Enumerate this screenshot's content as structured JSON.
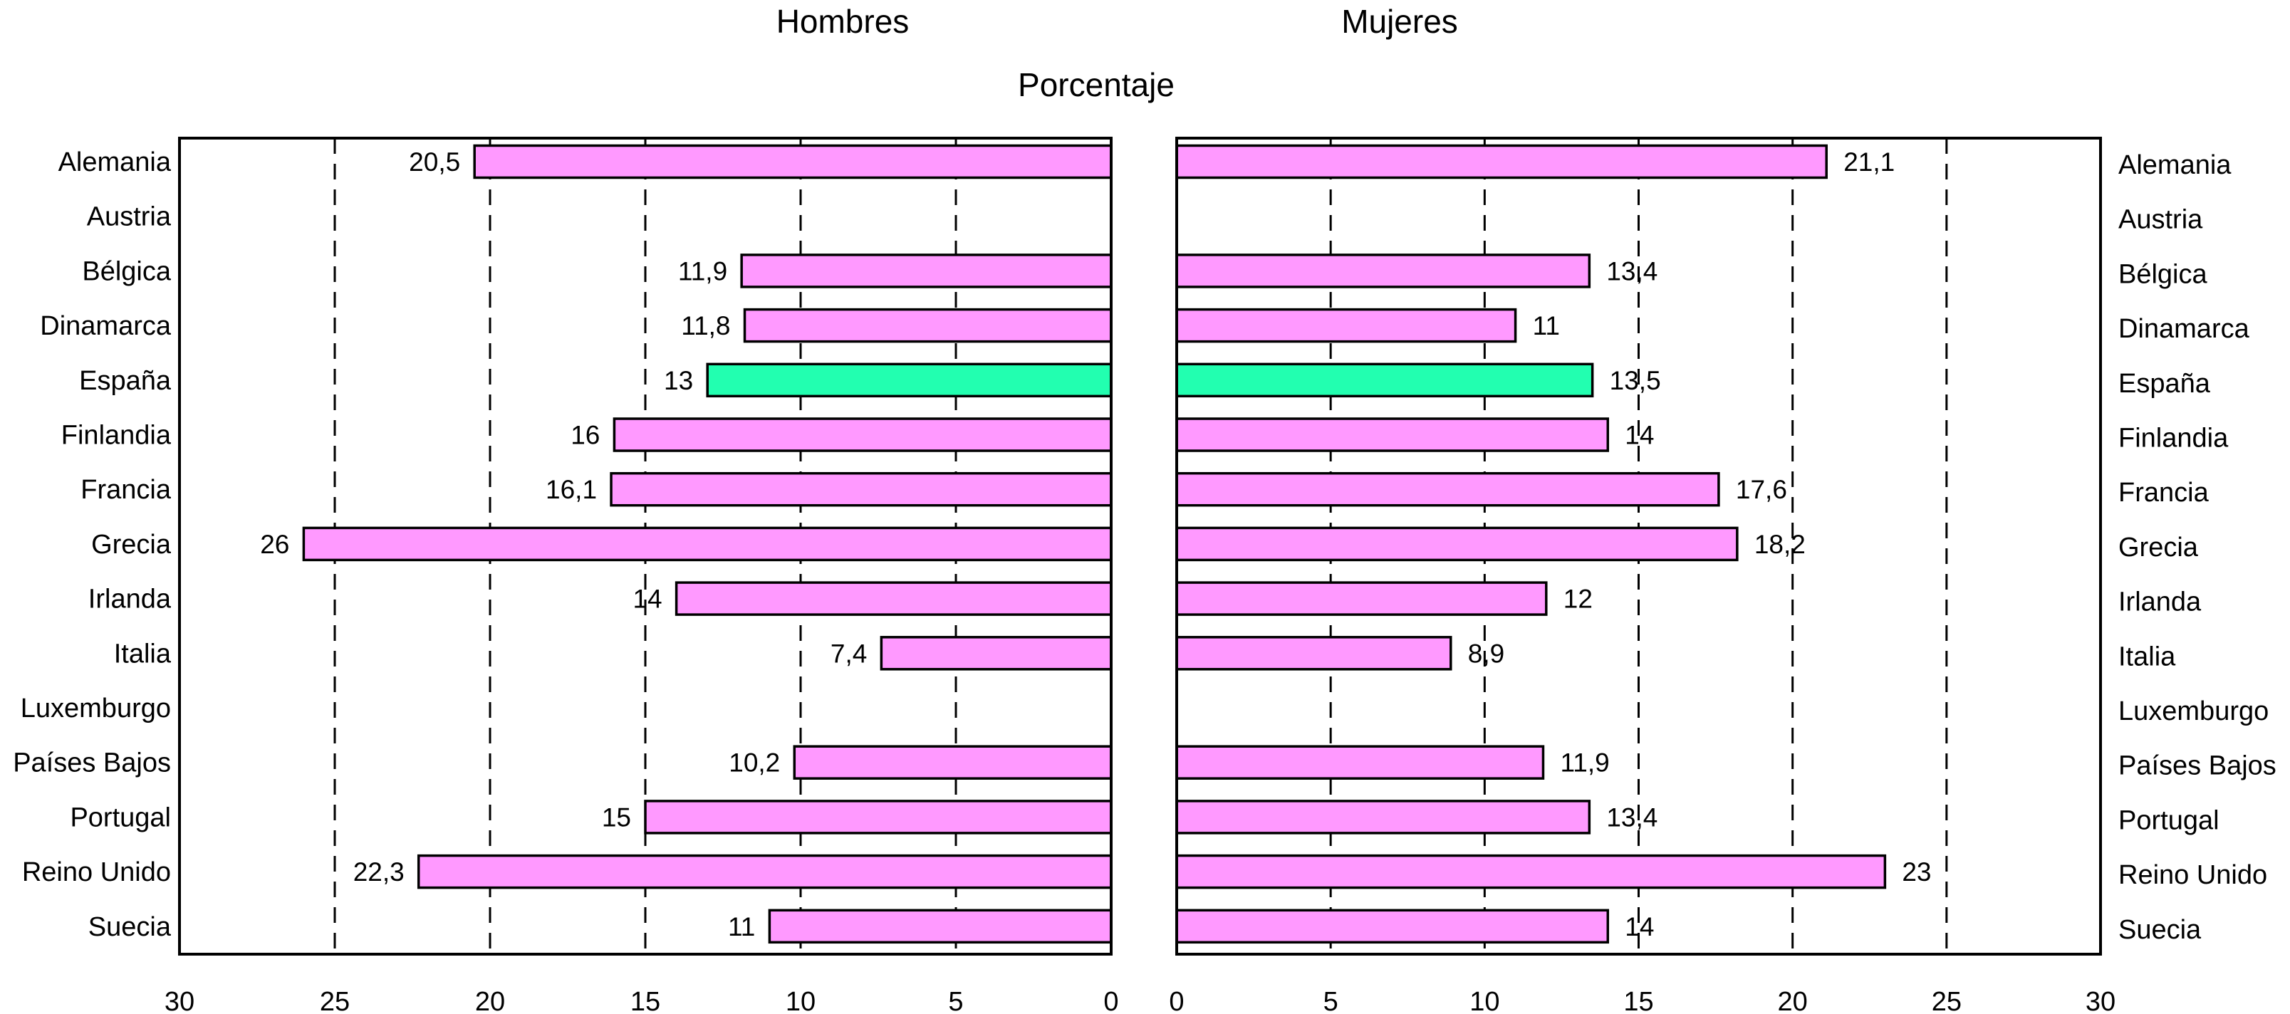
{
  "chart_data": {
    "type": "bar",
    "orientation": "horizontal",
    "title": "Porcentaje",
    "categories": [
      "Alemania",
      "Austria",
      "Bélgica",
      "Dinamarca",
      "España",
      "Finlandia",
      "Francia",
      "Grecia",
      "Irlanda",
      "Italia",
      "Luxemburgo",
      "Países Bajos",
      "Portugal",
      "Reino Unido",
      "Suecia"
    ],
    "xlim": [
      0,
      30
    ],
    "xticks": [
      30,
      25,
      20,
      15,
      10,
      5,
      0
    ],
    "grid": true,
    "highlight_category": "España",
    "colors": {
      "bar": "#ff99ff",
      "highlight": "#22ffb0",
      "outline": "#000000"
    },
    "series": [
      {
        "name": "Hombres",
        "values": [
          20.5,
          null,
          11.9,
          11.8,
          13,
          16,
          16.1,
          26,
          14,
          7.4,
          null,
          10.2,
          15,
          22.3,
          11
        ],
        "labels": [
          "20,5",
          "",
          "11,9",
          "11,8",
          "13",
          "16",
          "16,1",
          "26",
          "14",
          "7,4",
          "",
          "10,2",
          "15",
          "22,3",
          "11"
        ]
      },
      {
        "name": "Mujeres",
        "values": [
          21.1,
          null,
          13.4,
          11,
          13.5,
          14,
          17.6,
          18.2,
          12,
          8.9,
          null,
          11.9,
          13.4,
          23,
          14
        ],
        "labels": [
          "21,1",
          "",
          "13,4",
          "11",
          "13,5",
          "14",
          "17,6",
          "18,2",
          "12",
          "8,9",
          "",
          "11,9",
          "13,4",
          "23",
          "14"
        ]
      }
    ]
  }
}
